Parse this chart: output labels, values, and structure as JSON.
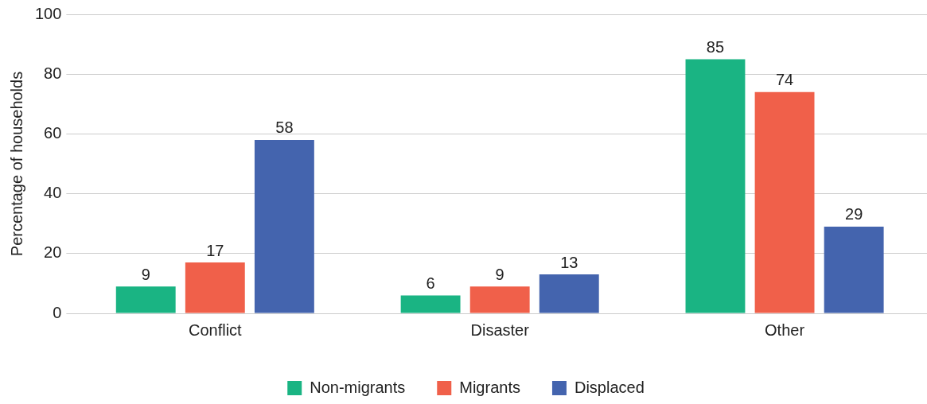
{
  "chart_data": {
    "type": "bar",
    "ylabel": "Percentage of households",
    "categories": [
      "Conflict",
      "Disaster",
      "Other"
    ],
    "series": [
      {
        "name": "Non-migrants",
        "color": "#1ab483",
        "values": [
          9,
          6,
          85
        ]
      },
      {
        "name": "Migrants",
        "color": "#f0604a",
        "values": [
          17,
          9,
          74
        ]
      },
      {
        "name": "Displaced",
        "color": "#4464ae",
        "values": [
          58,
          13,
          29
        ]
      }
    ],
    "ylim": [
      0,
      100
    ],
    "yticks": [
      0,
      20,
      40,
      60,
      80,
      100
    ],
    "grid": "y",
    "legend": "bottom",
    "data_labels": true
  }
}
